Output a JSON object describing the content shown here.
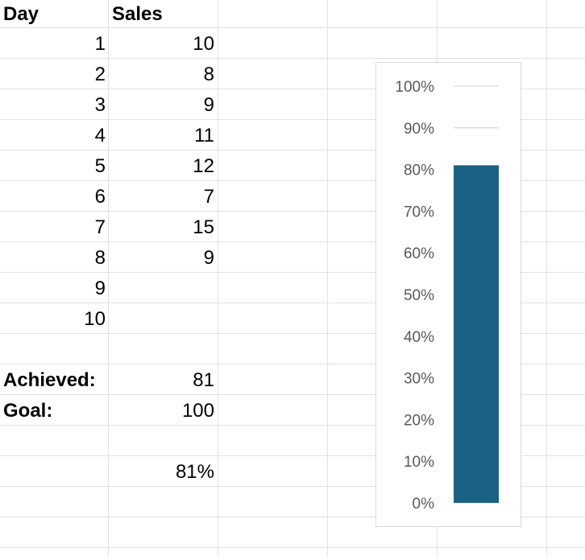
{
  "table": {
    "header": {
      "day": "Day",
      "sales": "Sales"
    },
    "rows": [
      {
        "day": "1",
        "sales": "10"
      },
      {
        "day": "2",
        "sales": "8"
      },
      {
        "day": "3",
        "sales": "9"
      },
      {
        "day": "4",
        "sales": "11"
      },
      {
        "day": "5",
        "sales": "12"
      },
      {
        "day": "6",
        "sales": "7"
      },
      {
        "day": "7",
        "sales": "15"
      },
      {
        "day": "8",
        "sales": "9"
      },
      {
        "day": "9",
        "sales": ""
      },
      {
        "day": "10",
        "sales": ""
      }
    ],
    "achieved_label": "Achieved:",
    "achieved_value": "81",
    "goal_label": "Goal:",
    "goal_value": "100",
    "percent_value": "81%"
  },
  "colors": {
    "bar": "#1a6184",
    "gridline": "#d9d9d9",
    "tick_text": "#595959"
  },
  "chart_data": {
    "type": "bar",
    "categories": [
      ""
    ],
    "values": [
      0.81
    ],
    "title": "",
    "xlabel": "",
    "ylabel": "",
    "ylim": [
      0,
      1
    ],
    "y_ticks": [
      "0%",
      "10%",
      "20%",
      "30%",
      "40%",
      "50%",
      "60%",
      "70%",
      "80%",
      "90%",
      "100%"
    ],
    "grid": true,
    "legend": "none"
  }
}
